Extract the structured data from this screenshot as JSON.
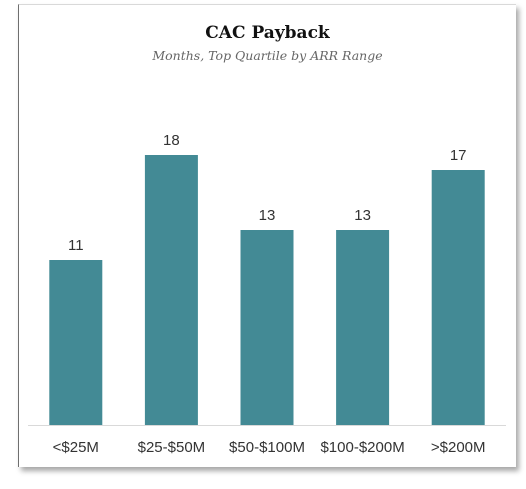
{
  "chart_data": {
    "type": "bar",
    "title": "CAC Payback",
    "subtitle": "Months, Top Quartile by ARR Range",
    "categories": [
      "<$25M",
      "$25-$50M",
      "$50-$100M",
      "$100-$200M",
      ">$200M"
    ],
    "values": [
      11,
      18,
      13,
      13,
      17
    ],
    "value_labels": [
      "11",
      "18",
      "13",
      "13",
      "17"
    ],
    "xlabel": "",
    "ylabel": "",
    "ylim": [
      0,
      20
    ],
    "grid": false,
    "legend": "none",
    "bar_color": "#438a95"
  }
}
